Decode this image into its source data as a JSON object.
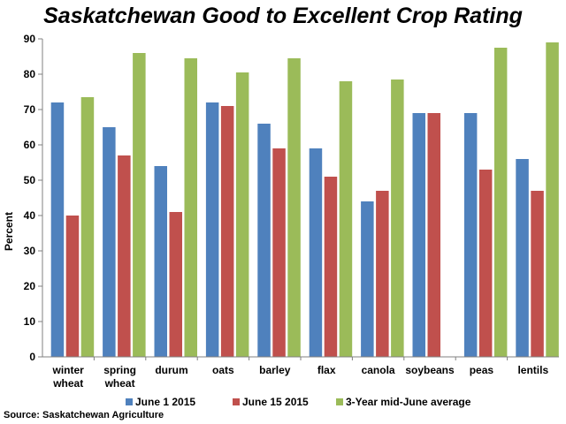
{
  "chart_data": {
    "type": "bar",
    "title": "Saskatchewan Good to Excellent Crop Rating",
    "xlabel": "",
    "ylabel": "Percent",
    "ylim": [
      0,
      90
    ],
    "yticks": [
      0,
      10,
      20,
      30,
      40,
      50,
      60,
      70,
      80,
      90
    ],
    "grid": false,
    "legend_position": "bottom",
    "categories": [
      [
        "winter",
        "wheat"
      ],
      [
        "spring",
        "wheat"
      ],
      [
        "durum"
      ],
      [
        "oats"
      ],
      [
        "barley"
      ],
      [
        "flax"
      ],
      [
        "canola"
      ],
      [
        "soybeans"
      ],
      [
        "peas"
      ],
      [
        "lentils"
      ]
    ],
    "series": [
      {
        "name": "June 1  2015",
        "color": "#4f81bd",
        "values": [
          72,
          65,
          54,
          72,
          66,
          59,
          44,
          69,
          69,
          56
        ]
      },
      {
        "name": "June 15 2015",
        "color": "#c0504d",
        "values": [
          40,
          57,
          41,
          71,
          59,
          51,
          47,
          69,
          53,
          47
        ]
      },
      {
        "name": "3-Year mid-June average",
        "color": "#9bbb59",
        "values": [
          73.5,
          86,
          84.5,
          80.5,
          84.5,
          78,
          78.5,
          null,
          87.5,
          89
        ]
      }
    ]
  },
  "source": "Source: Saskatchewan Agriculture"
}
